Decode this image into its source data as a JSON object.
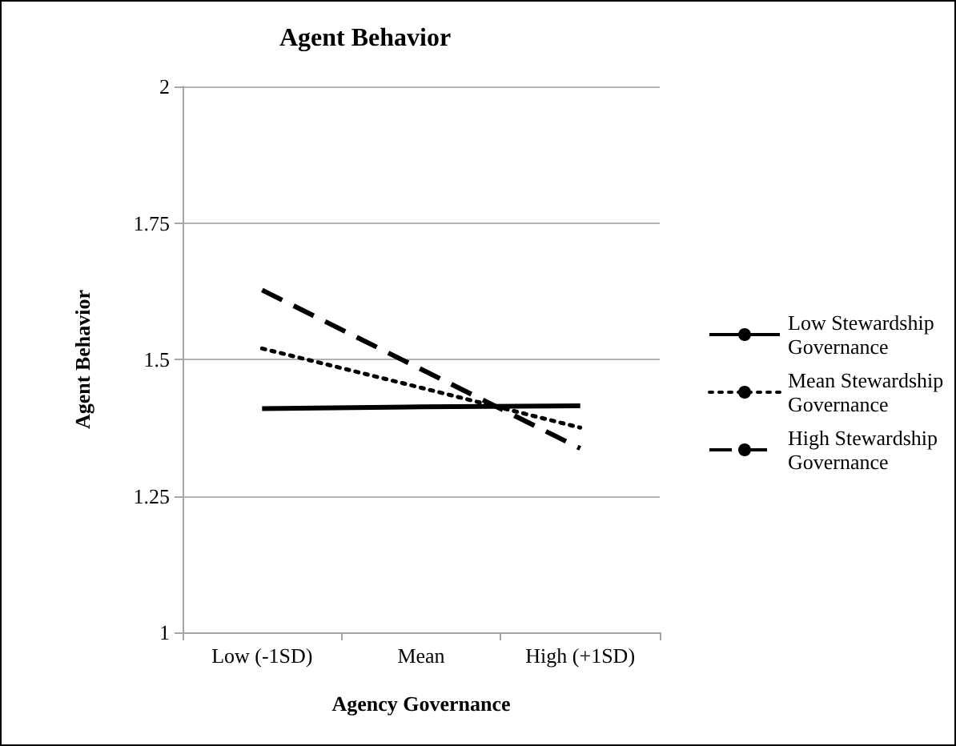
{
  "chart_data": {
    "type": "line",
    "title": "Agent Behavior",
    "xlabel": "Agency Governance",
    "ylabel": "Agent Behavior",
    "categories": [
      "Low (-1SD)",
      "Mean",
      "High (+1SD)"
    ],
    "series": [
      {
        "name": "Low Stewardship Governance",
        "color": "#000000",
        "line_style": "solid",
        "values": [
          1.41,
          1.413,
          1.415
        ]
      },
      {
        "name": "Mean Stewardship Governance",
        "color": "#000000",
        "line_style": "dotted",
        "values": [
          1.52,
          1.448,
          1.375
        ]
      },
      {
        "name": "High Stewardship Governance",
        "color": "#000000",
        "line_style": "dashed",
        "values": [
          1.627,
          1.482,
          1.337
        ]
      }
    ],
    "ylim": [
      1,
      2
    ],
    "yticks": [
      1,
      1.25,
      1.5,
      1.75,
      2
    ],
    "grid": "y",
    "legend": "right",
    "marker": "none"
  }
}
